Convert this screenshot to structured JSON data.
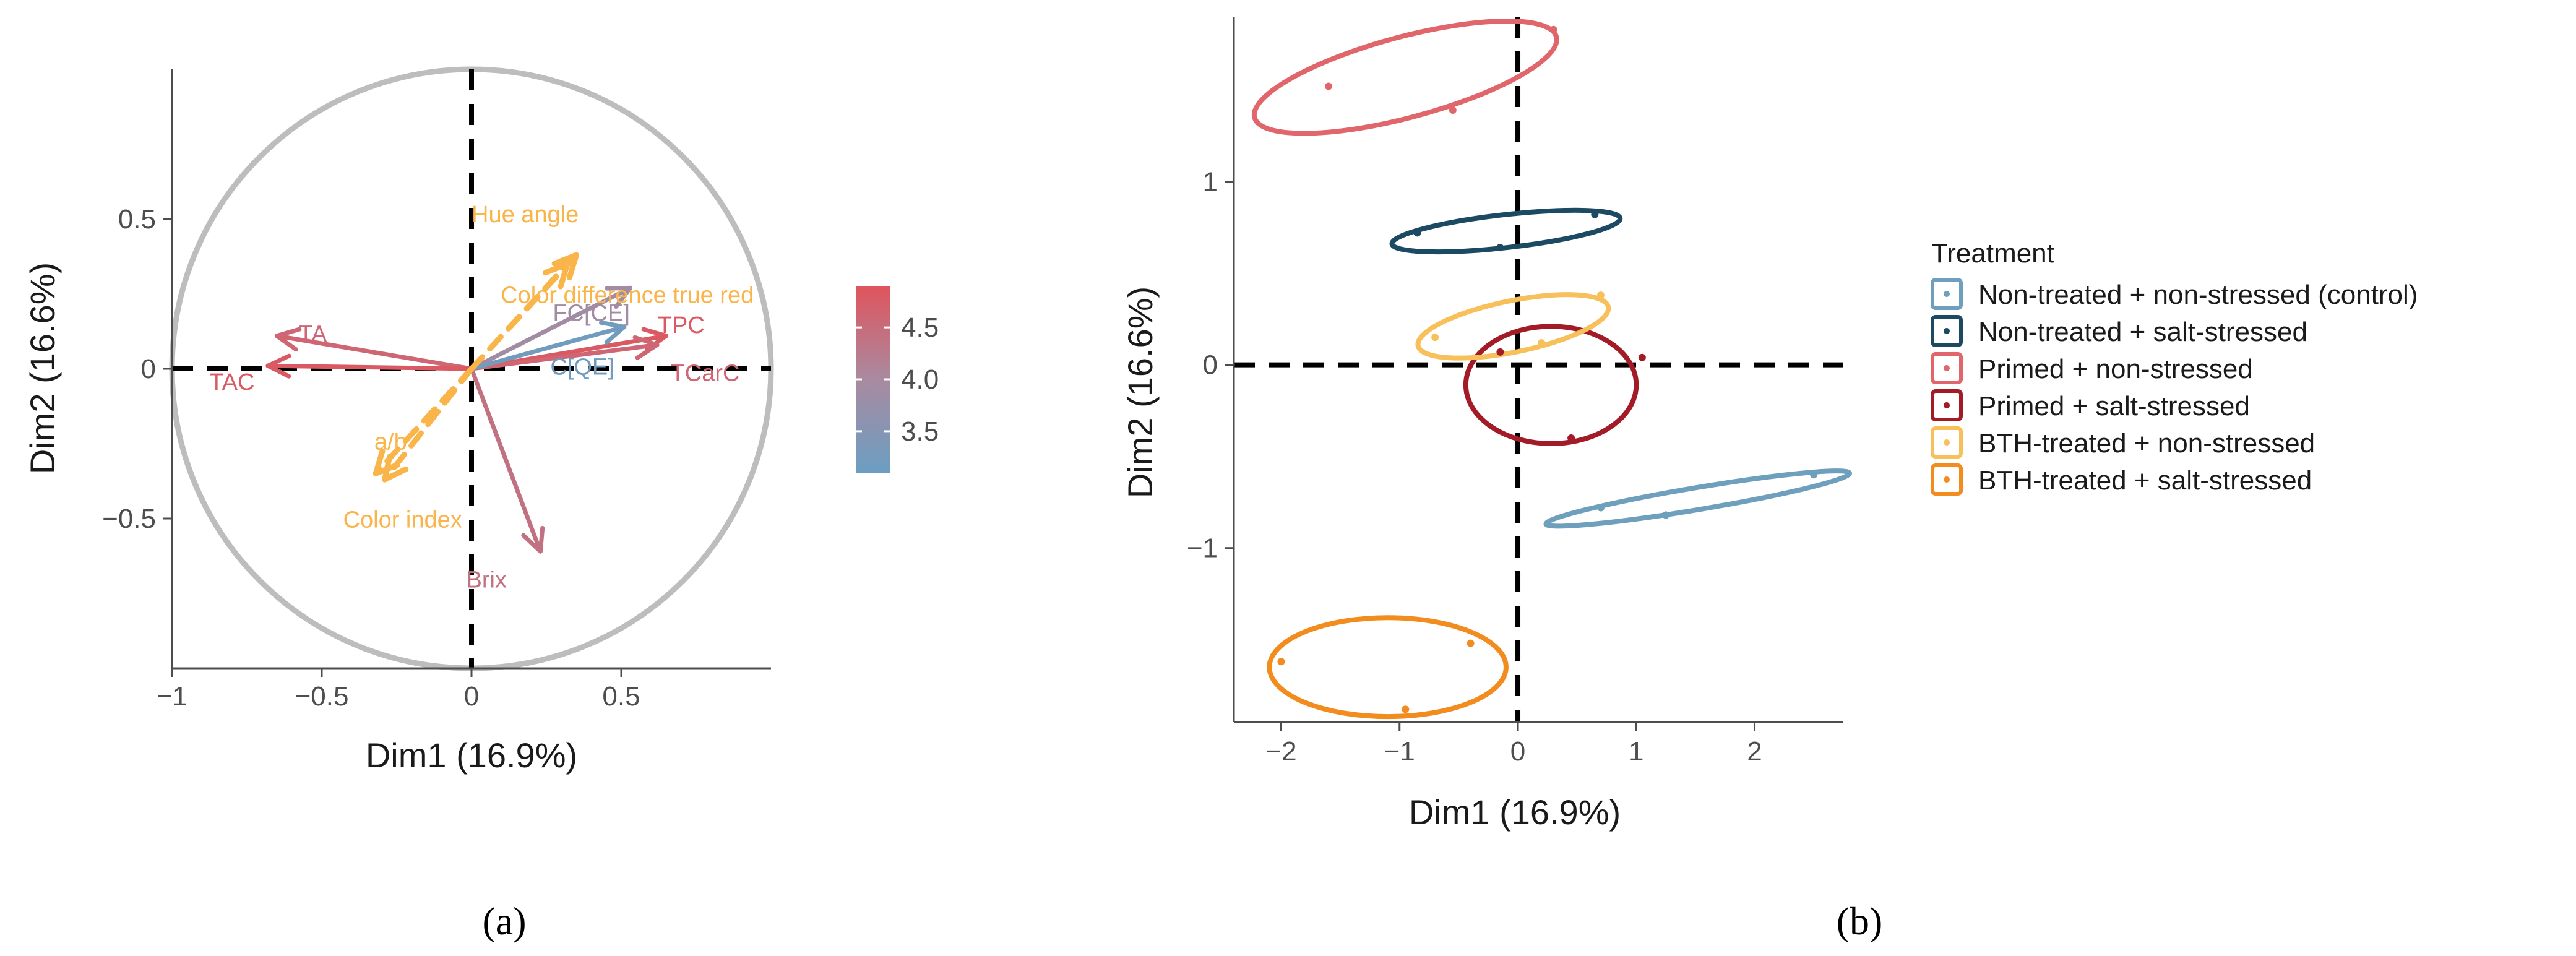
{
  "colors": {
    "gradient_high": "#e0545c",
    "gradient_mid": "#a98aa0",
    "gradient_low": "#6b9ec2",
    "supplementary": "#f9b44a",
    "circle": "#bdbdbd",
    "control": "#6e9fbc",
    "salt_stressed": "#1d4a63",
    "primed_non": "#e0666b",
    "primed_salt": "#a31b27",
    "bth_non": "#f8c05b",
    "bth_salt": "#f28c1e"
  },
  "panel_labels": {
    "a": "(a)",
    "b": "(b)"
  },
  "chart_data": [
    {
      "type": "scatter",
      "subtype": "pca-variable-correlation-circle",
      "xlabel": "Dim1 (16.9%)",
      "ylabel": "Dim2 (16.6%)",
      "xlim": [
        -1,
        1
      ],
      "ylim": [
        -1,
        1
      ],
      "xticks": [
        -1,
        -0.5,
        0,
        0.5
      ],
      "yticks": [
        -0.5,
        0,
        0.5
      ],
      "xtick_labels": [
        "−1",
        "−0.5",
        "0",
        "0.5"
      ],
      "ytick_labels": [
        "−0.5",
        "0",
        "0.5"
      ],
      "reference_lines": [
        0,
        0
      ],
      "colorbar": {
        "range": [
          3.1,
          4.9
        ],
        "ticks": [
          3.5,
          4.0,
          4.5
        ],
        "tick_labels": [
          "3.5",
          "4.0",
          "4.5"
        ]
      },
      "active_variables": [
        {
          "name": "TPC",
          "x": 0.65,
          "y": 0.11,
          "cos2": 4.8
        },
        {
          "name": "TCarC",
          "x": 0.62,
          "y": 0.08,
          "cos2": 4.6
        },
        {
          "name": "TA",
          "x": -0.65,
          "y": 0.11,
          "cos2": 4.6
        },
        {
          "name": "TAC",
          "x": -0.68,
          "y": 0.01,
          "cos2": 4.8
        },
        {
          "name": "Brix",
          "x": 0.23,
          "y": -0.61,
          "cos2": 4.4
        },
        {
          "name": "FC[CE]",
          "x": 0.53,
          "y": 0.27,
          "cos2": 3.9
        },
        {
          "name": "C[QE]",
          "x": 0.51,
          "y": 0.14,
          "cos2": 3.2
        }
      ],
      "active_label_text": {
        "TPC": "TPC",
        "TCarC": "TCarC",
        "TA": "TA",
        "TAC": "TAC",
        "Brix": "Brix",
        "FC": "FC[CE]",
        "C": "C[QE]"
      },
      "supplementary_variables": [
        {
          "name": "Hue angle",
          "x": 0.35,
          "y": 0.38
        },
        {
          "name": "Color difference true red",
          "x": 0.32,
          "y": 0.35
        },
        {
          "name": "a/b",
          "x": -0.32,
          "y": -0.35
        },
        {
          "name": "Color index",
          "x": -0.29,
          "y": -0.37
        }
      ]
    },
    {
      "type": "scatter",
      "subtype": "pca-individuals-with-ellipses",
      "xlabel": "Dim1 (16.9%)",
      "ylabel": "Dim2 (16.6%)",
      "xlim": [
        -2.4,
        2.75
      ],
      "ylim": [
        -1.95,
        1.9
      ],
      "xticks": [
        -2,
        -1,
        0,
        1,
        2
      ],
      "yticks": [
        -1,
        0,
        1
      ],
      "xtick_labels": [
        "−2",
        "−1",
        "0",
        "1",
        "2"
      ],
      "ytick_labels": [
        "−1",
        "0",
        "1"
      ],
      "reference_lines": [
        0,
        0
      ],
      "legend": {
        "title": "Treatment",
        "position": "right"
      },
      "series": [
        {
          "name": "Non-treated + non-stressed (control)",
          "color_key": "control",
          "points": [
            [
              0.7,
              -0.78
            ],
            [
              1.25,
              -0.82
            ],
            [
              2.5,
              -0.6
            ]
          ],
          "ellipse": {
            "cx": 1.52,
            "cy": -0.73,
            "rx": 1.3,
            "ry": 0.06,
            "angle_deg": 9.5
          }
        },
        {
          "name": "Non-treated + salt-stressed",
          "color_key": "salt_stressed",
          "points": [
            [
              -0.85,
              0.72
            ],
            [
              -0.15,
              0.64
            ],
            [
              0.65,
              0.82
            ]
          ],
          "ellipse": {
            "cx": -0.1,
            "cy": 0.73,
            "rx": 0.97,
            "ry": 0.09,
            "angle_deg": 6.4
          }
        },
        {
          "name": "Primed + non-stressed",
          "color_key": "primed_non",
          "points": [
            [
              -1.6,
              1.52
            ],
            [
              -0.55,
              1.39
            ],
            [
              0.3,
              1.83
            ]
          ],
          "ellipse": {
            "cx": -0.95,
            "cy": 1.57,
            "rx": 1.32,
            "ry": 0.22,
            "angle_deg": 15
          }
        },
        {
          "name": "Primed + salt-stressed",
          "color_key": "primed_salt",
          "points": [
            [
              -0.15,
              0.07
            ],
            [
              1.05,
              0.04
            ],
            [
              0.45,
              -0.4
            ]
          ],
          "ellipse": {
            "cx": 0.28,
            "cy": -0.11,
            "rx": 0.72,
            "ry": 0.32,
            "angle_deg": 0
          }
        },
        {
          "name": "BTH-treated + non-stressed",
          "color_key": "bth_non",
          "points": [
            [
              -0.7,
              0.15
            ],
            [
              0.2,
              0.12
            ],
            [
              0.7,
              0.38
            ]
          ],
          "ellipse": {
            "cx": -0.04,
            "cy": 0.21,
            "rx": 0.82,
            "ry": 0.14,
            "angle_deg": 11.5
          }
        },
        {
          "name": "BTH-treated + salt-stressed",
          "color_key": "bth_salt",
          "points": [
            [
              -2.0,
              -1.62
            ],
            [
              -0.4,
              -1.52
            ],
            [
              -0.95,
              -1.88
            ]
          ],
          "ellipse": {
            "cx": -1.1,
            "cy": -1.65,
            "rx": 1.0,
            "ry": 0.27,
            "angle_deg": 0
          }
        }
      ]
    }
  ]
}
